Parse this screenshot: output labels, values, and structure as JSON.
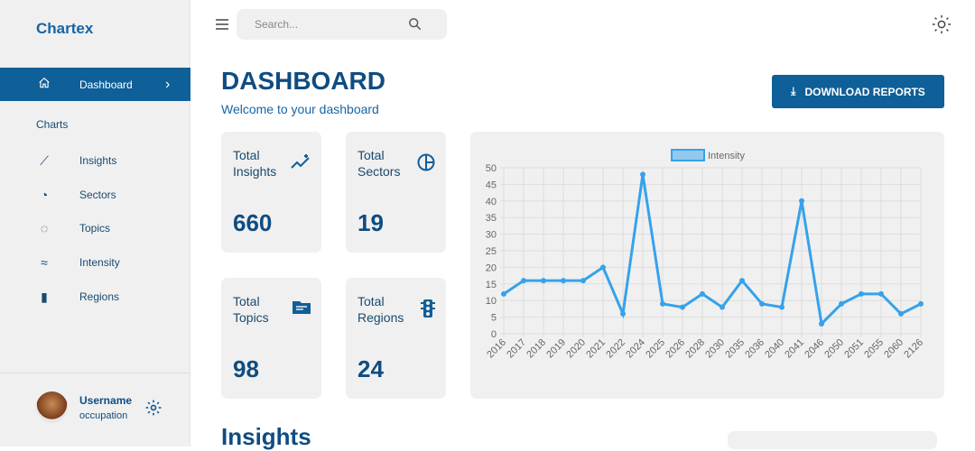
{
  "sidebar": {
    "brand": "Chartex",
    "active": {
      "label": "Dashboard",
      "icon": "home-icon"
    },
    "section": "Charts",
    "items": [
      {
        "label": "Insights",
        "icon": "insights-icon"
      },
      {
        "label": "Sectors",
        "icon": "pie-icon"
      },
      {
        "label": "Topics",
        "icon": "donut-icon"
      },
      {
        "label": "Intensity",
        "icon": "stacked-line-icon"
      },
      {
        "label": "Regions",
        "icon": "bar-chart-icon"
      }
    ],
    "user": {
      "name": "Username",
      "occupation": "occupation"
    }
  },
  "header": {
    "search_placeholder": "Search..."
  },
  "main": {
    "title": "DASHBOARD",
    "subtitle": "Welcome to your dashboard",
    "download_label": "DOWNLOAD REPORTS",
    "section_title": "Insights",
    "cards": [
      {
        "title": "Total Insights",
        "value": "660"
      },
      {
        "title": "Total Sectors",
        "value": "19"
      },
      {
        "title": "Total Topics",
        "value": "98"
      },
      {
        "title": "Total Regions",
        "value": "24"
      }
    ]
  },
  "colors": {
    "primary": "#0f5f98",
    "line": "#36a2eb"
  },
  "chart_data": {
    "type": "line",
    "legend": "Intensity",
    "legend_position": "top",
    "grid": true,
    "ylim": [
      0,
      50
    ],
    "yticks": [
      0,
      5,
      10,
      15,
      20,
      25,
      30,
      35,
      40,
      45,
      50
    ],
    "categories": [
      "2016",
      "2017",
      "2018",
      "2019",
      "2020",
      "2021",
      "2022",
      "2024",
      "2025",
      "2026",
      "2028",
      "2030",
      "2035",
      "2036",
      "2040",
      "2041",
      "2046",
      "2050",
      "2051",
      "2055",
      "2060",
      "2126"
    ],
    "series": [
      {
        "name": "Intensity",
        "values": [
          12,
          16,
          16,
          16,
          16,
          20,
          6,
          48,
          9,
          8,
          12,
          8,
          16,
          9,
          8,
          40,
          3,
          9,
          12,
          12,
          6,
          9
        ]
      }
    ]
  }
}
